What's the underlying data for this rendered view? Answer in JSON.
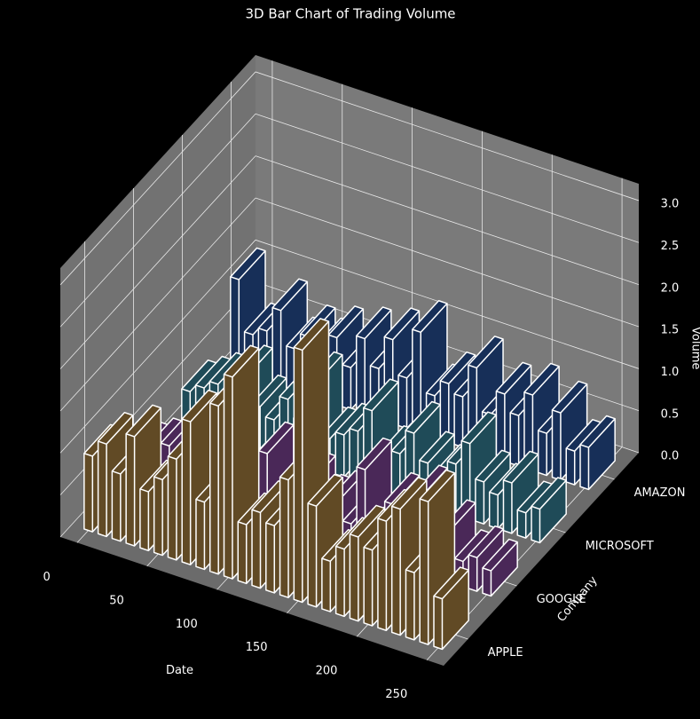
{
  "chart_data": {
    "type": "bar3d",
    "title": "3D Bar Chart of Trading Volume",
    "xlabel": "Date",
    "ylabel": "Company",
    "zlabel": "Volume",
    "x": [
      0,
      10,
      20,
      30,
      40,
      50,
      60,
      70,
      80,
      90,
      100,
      110,
      120,
      130,
      140,
      150,
      160,
      170,
      180,
      190,
      200,
      210,
      220,
      230,
      240,
      250
    ],
    "categories": [
      "APPLE",
      "GOOGLE",
      "MICROSOFT",
      "AMAZON"
    ],
    "series": [
      {
        "name": "APPLE",
        "color": "#614a25",
        "values": [
          0.9,
          1.1,
          0.8,
          1.3,
          0.7,
          0.9,
          1.2,
          1.7,
          0.8,
          2.0,
          2.4,
          0.7,
          0.9,
          0.8,
          1.4,
          3.0,
          1.2,
          0.6,
          0.8,
          1.0,
          0.9,
          1.3,
          1.5,
          0.8,
          1.7,
          0.6
        ]
      },
      {
        "name": "GOOGLE",
        "color": "#4a2858",
        "values": [
          0.3,
          0.4,
          0.5,
          0.3,
          0.6,
          0.4,
          0.9,
          0.3,
          0.5,
          0.8,
          0.4,
          0.3,
          0.6,
          0.4,
          0.5,
          0.3,
          1.0,
          0.4,
          0.7,
          0.5,
          0.9,
          0.4,
          0.6,
          0.3,
          0.4,
          0.3
        ]
      },
      {
        "name": "MICROSOFT",
        "color": "#1f4b58",
        "values": [
          0.4,
          0.5,
          0.6,
          0.4,
          0.8,
          0.5,
          0.4,
          0.7,
          0.5,
          1.0,
          0.4,
          0.5,
          0.6,
          0.9,
          0.4,
          0.5,
          0.8,
          0.5,
          0.4,
          0.6,
          0.9,
          0.5,
          0.4,
          0.6,
          0.3,
          0.4
        ]
      },
      {
        "name": "AMAZON",
        "color": "#172f58",
        "values": [
          1.1,
          0.5,
          0.6,
          0.9,
          0.5,
          0.7,
          0.6,
          0.8,
          0.5,
          0.9,
          0.6,
          1.0,
          0.6,
          1.2,
          0.5,
          0.7,
          0.6,
          1.0,
          0.5,
          0.8,
          0.6,
          0.9,
          0.5,
          0.8,
          0.4,
          0.5
        ]
      }
    ],
    "xlim": [
      -12,
      262
    ],
    "xticks": [
      0,
      50,
      100,
      150,
      200,
      250
    ],
    "ylim": [
      -0.5,
      3.5
    ],
    "zlim": [
      0,
      3.2
    ],
    "zticks": [
      {
        "value": 0,
        "label": "0.0"
      },
      {
        "value": 0.5,
        "label": "0.5"
      },
      {
        "value": 1,
        "label": "1.0"
      },
      {
        "value": 1.5,
        "label": "1.5"
      },
      {
        "value": 2,
        "label": "2.0"
      },
      {
        "value": 2.5,
        "label": "2.5"
      },
      {
        "value": 3,
        "label": "3.0"
      }
    ],
    "grid": true
  }
}
